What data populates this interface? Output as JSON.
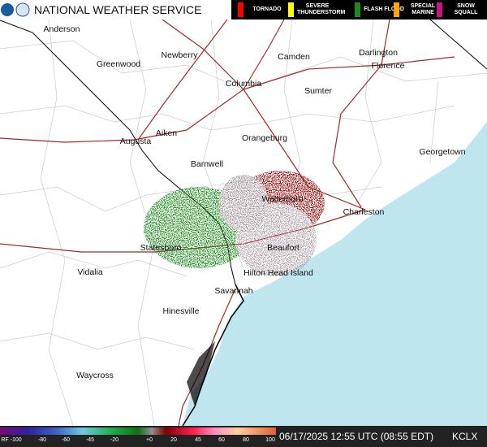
{
  "header": {
    "title": "NATIONAL WEATHER SERVICE"
  },
  "warnings": [
    {
      "label": "TORNADO",
      "color": "#ff0000"
    },
    {
      "label": "SEVERE THUNDERSTORM",
      "color": "#ffff00"
    },
    {
      "label": "FLASH FLOOD",
      "color": "#1a8c1a"
    },
    {
      "label": "SPECIAL MARINE",
      "color": "#ffa500"
    },
    {
      "label": "SNOW SQUALL",
      "color": "#c71585"
    }
  ],
  "cities": [
    "Anderson",
    "Greenwood",
    "Newberry",
    "Camden",
    "Darlington",
    "Florence",
    "Columbia",
    "Sumter",
    "Aiken",
    "Augusta",
    "Orangeburg",
    "Georgetown",
    "Barnwell",
    "Walterboro",
    "Charleston",
    "Statesboro",
    "Beaufort",
    "Hilton Head Island",
    "Vidalia",
    "Savannah",
    "Hinesville",
    "Waycross"
  ],
  "scale": {
    "labels": [
      "RF -100",
      "-80",
      "-60",
      "-45",
      "-20",
      "+0",
      "20",
      "45",
      "60",
      "80",
      "100"
    ]
  },
  "footer": {
    "timestamp": "06/17/2025 12:55 UTC (08:55 EDT)",
    "station": "KCLX"
  }
}
